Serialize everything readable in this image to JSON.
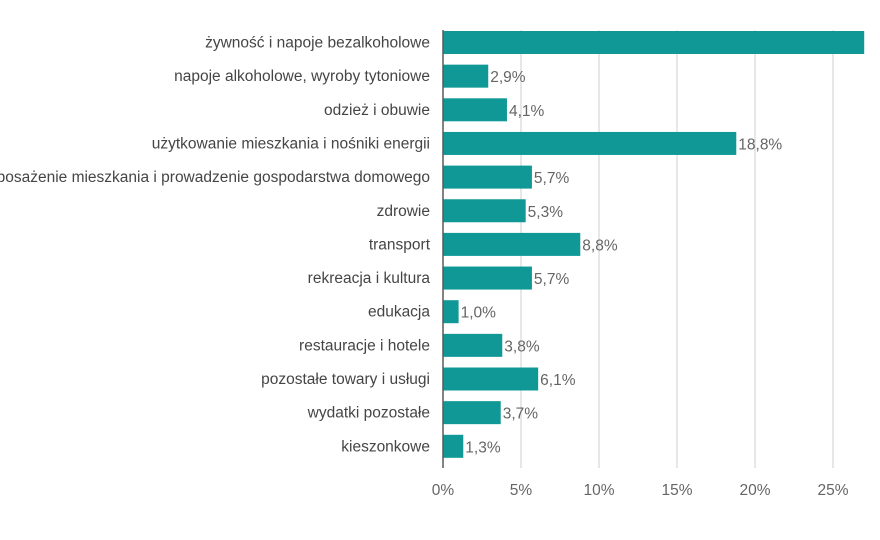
{
  "chart_data": {
    "type": "bar",
    "orientation": "horizontal",
    "categories": [
      "żywność i napoje bezalkoholowe",
      "napoje alkoholowe, wyroby tytoniowe",
      "odzież i obuwie",
      "użytkowanie mieszkania i nośniki energii",
      "wyposażenie mieszkania i prowadzenie gospodarstwa domowego",
      "zdrowie",
      "transport",
      "rekreacja i kultura",
      "edukacja",
      "restauracje i hotele",
      "pozostałe towary i usługi",
      "wydatki pozostałe",
      "kieszonkowe"
    ],
    "values": [
      27.0,
      2.9,
      4.1,
      18.8,
      5.7,
      5.3,
      8.8,
      5.7,
      1.0,
      3.8,
      6.1,
      3.7,
      1.3
    ],
    "data_labels": [
      "",
      "2,9%",
      "4,1%",
      "18,8%",
      "5,7%",
      "5,3%",
      "8,8%",
      "5,7%",
      "1,0%",
      "3,8%",
      "6,1%",
      "3,7%",
      "1,3%"
    ],
    "xlim": [
      0,
      27
    ],
    "x_ticks": [
      0,
      5,
      10,
      15,
      20,
      25
    ],
    "x_tick_labels": [
      "0%",
      "5%",
      "10%",
      "15%",
      "20%",
      "25%"
    ],
    "grid": "vertical",
    "colors": {
      "bar": "#0f9896",
      "grid": "#cfcfcf",
      "axis": "#5a5a5a",
      "category_text": "#454545",
      "value_text": "#656565",
      "tick_text": "#656565"
    }
  }
}
